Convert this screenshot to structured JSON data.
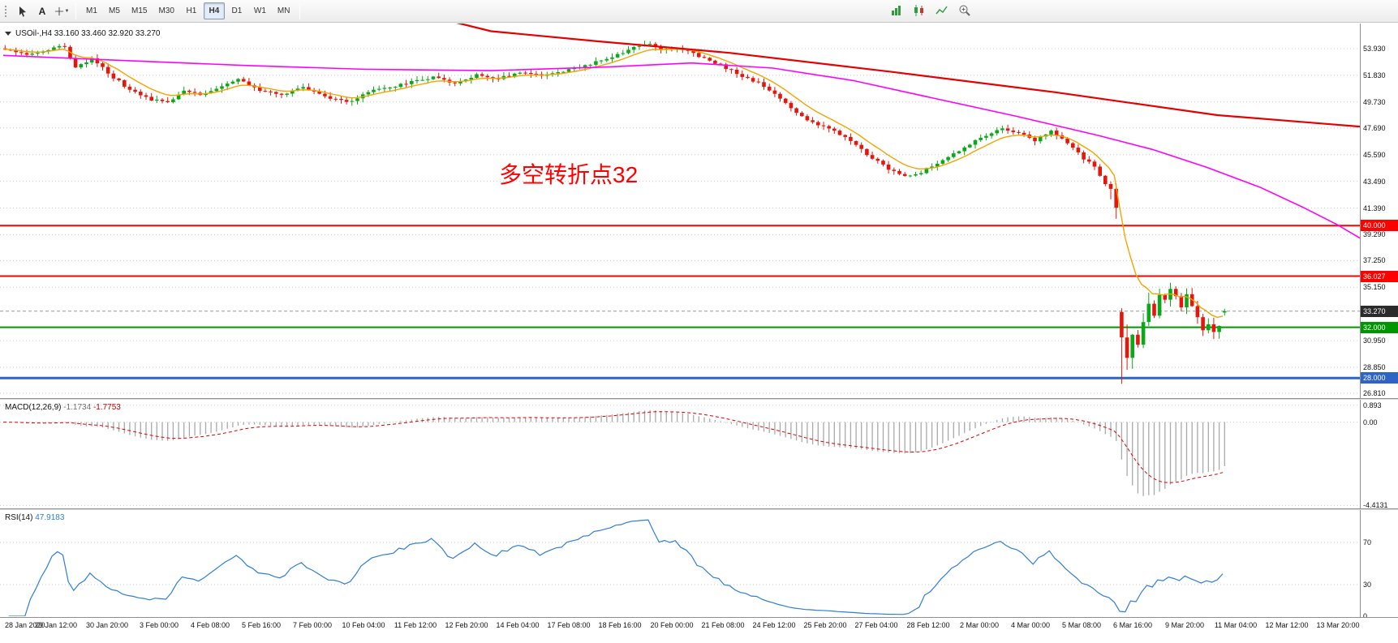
{
  "toolbar": {
    "text_tool_label": "A",
    "timeframes": [
      {
        "label": "M1",
        "active": false
      },
      {
        "label": "M5",
        "active": false
      },
      {
        "label": "M15",
        "active": false
      },
      {
        "label": "M30",
        "active": false
      },
      {
        "label": "H1",
        "active": false
      },
      {
        "label": "H4",
        "active": true
      },
      {
        "label": "D1",
        "active": false
      },
      {
        "label": "W1",
        "active": false
      },
      {
        "label": "MN",
        "active": false
      }
    ],
    "right_icons": [
      "bar-chart-icon",
      "candlestick-chart-icon",
      "line-chart-icon",
      "zoom-in-icon"
    ]
  },
  "chart": {
    "title": "USOil-,H4 33.160 33.460 32.920 33.270",
    "annotation": {
      "text": "多空转折点32",
      "color": "#ff0000"
    },
    "current_price": {
      "value": 33.27,
      "label": "33.270",
      "badge_bg": "#2b2b2b"
    },
    "hlines": [
      {
        "price": 40.0,
        "label": "40.000",
        "color": "#ff0000",
        "width": 2
      },
      {
        "price": 36.027,
        "label": "36.027",
        "color": "#ff0000",
        "width": 2
      },
      {
        "price": 32.0,
        "label": "32.000",
        "color": "#009600",
        "width": 2
      },
      {
        "price": 28.0,
        "label": "28.000",
        "color": "#2e64c8",
        "width": 3
      }
    ],
    "y_axis_labels": [
      {
        "text": "53.930",
        "value": 53.93
      },
      {
        "text": "51.830",
        "value": 51.83
      },
      {
        "text": "49.730",
        "value": 49.73
      },
      {
        "text": "47.690",
        "value": 47.69
      },
      {
        "text": "45.590",
        "value": 45.59
      },
      {
        "text": "43.490",
        "value": 43.49
      },
      {
        "text": "41.390",
        "value": 41.39
      },
      {
        "text": "39.290",
        "value": 39.29
      },
      {
        "text": "37.250",
        "value": 37.25
      },
      {
        "text": "35.150",
        "value": 35.15
      },
      {
        "text": "30.950",
        "value": 30.95
      },
      {
        "text": "28.850",
        "value": 28.85
      },
      {
        "text": "26.810",
        "value": 26.81
      }
    ]
  },
  "chart_data": {
    "type": "candlestick",
    "symbol": "USOil",
    "timeframe": "H4",
    "ohlc_current": {
      "open": 33.16,
      "high": 33.46,
      "low": 32.92,
      "close": 33.27
    },
    "bars": 226,
    "gap_open": 33.2,
    "gap_high": 33.5,
    "gap_low": 27.55,
    "up_color": "#0ca81c",
    "down_color": "#e3170c",
    "close_anchors": [
      [
        0,
        53.8
      ],
      [
        4,
        53.5
      ],
      [
        8,
        53.9
      ],
      [
        11,
        54.1
      ],
      [
        13,
        52.4
      ],
      [
        16,
        53.2
      ],
      [
        19,
        52.0
      ],
      [
        23,
        50.7
      ],
      [
        27,
        49.9
      ],
      [
        30,
        49.7
      ],
      [
        33,
        50.7
      ],
      [
        36,
        50.3
      ],
      [
        40,
        50.9
      ],
      [
        43,
        51.5
      ],
      [
        47,
        50.7
      ],
      [
        51,
        50.2
      ],
      [
        55,
        50.9
      ],
      [
        59,
        50.1
      ],
      [
        63,
        49.7
      ],
      [
        67,
        50.5
      ],
      [
        71,
        50.9
      ],
      [
        75,
        51.3
      ],
      [
        79,
        51.7
      ],
      [
        83,
        51.2
      ],
      [
        87,
        51.9
      ],
      [
        91,
        51.6
      ],
      [
        95,
        52.1
      ],
      [
        99,
        51.8
      ],
      [
        103,
        52.2
      ],
      [
        107,
        52.6
      ],
      [
        111,
        53.1
      ],
      [
        114,
        53.6
      ],
      [
        117,
        54.2
      ],
      [
        119,
        54.4
      ],
      [
        121,
        53.8
      ],
      [
        124,
        54.0
      ],
      [
        127,
        53.5
      ],
      [
        130,
        53.0
      ],
      [
        133,
        52.4
      ],
      [
        136,
        51.8
      ],
      [
        139,
        51.2
      ],
      [
        142,
        50.4
      ],
      [
        145,
        49.3
      ],
      [
        148,
        48.3
      ],
      [
        151,
        47.8
      ],
      [
        154,
        47.2
      ],
      [
        157,
        46.3
      ],
      [
        160,
        45.3
      ],
      [
        163,
        44.5
      ],
      [
        166,
        43.9
      ],
      [
        169,
        44.2
      ],
      [
        172,
        44.9
      ],
      [
        175,
        45.6
      ],
      [
        178,
        46.4
      ],
      [
        181,
        47.1
      ],
      [
        184,
        47.6
      ],
      [
        187,
        47.3
      ],
      [
        190,
        46.7
      ],
      [
        193,
        47.4
      ],
      [
        195,
        46.9
      ],
      [
        197,
        46.2
      ],
      [
        199,
        45.3
      ],
      [
        201,
        44.6
      ],
      [
        203,
        43.2
      ],
      [
        204,
        42.9
      ],
      [
        205,
        41.4
      ],
      [
        206,
        31.2
      ],
      [
        207,
        29.5
      ],
      [
        208,
        31.6
      ],
      [
        209,
        30.6
      ],
      [
        210,
        32.4
      ],
      [
        211,
        33.7
      ],
      [
        212,
        33.1
      ],
      [
        213,
        34.5
      ],
      [
        214,
        34.1
      ],
      [
        215,
        35.0
      ],
      [
        216,
        34.3
      ],
      [
        217,
        33.7
      ],
      [
        218,
        34.6
      ],
      [
        219,
        33.6
      ],
      [
        220,
        32.6
      ],
      [
        221,
        31.9
      ],
      [
        222,
        32.4
      ],
      [
        223,
        31.8
      ],
      [
        224,
        32.3
      ],
      [
        225,
        33.27
      ]
    ],
    "ma_fast_color": "#f5a300",
    "ma_mid_color": "#ff00ff",
    "ma_slow_color": "#e60000",
    "ma_mid_anchors": [
      [
        0,
        53.4
      ],
      [
        22,
        53.0
      ],
      [
        45,
        52.6
      ],
      [
        67,
        52.3
      ],
      [
        90,
        52.2
      ],
      [
        112,
        52.5
      ],
      [
        127,
        52.8
      ],
      [
        142,
        52.4
      ],
      [
        157,
        51.4
      ],
      [
        172,
        50.0
      ],
      [
        187,
        48.6
      ],
      [
        202,
        47.1
      ],
      [
        212,
        46.0
      ],
      [
        222,
        44.6
      ],
      [
        232,
        43.0
      ],
      [
        240,
        41.4
      ],
      [
        246,
        40.1
      ],
      [
        252,
        38.6
      ],
      [
        255,
        38.1
      ]
    ],
    "ma_slow_anchors": [
      [
        72,
        57.2
      ],
      [
        90,
        55.3
      ],
      [
        110,
        54.5
      ],
      [
        134,
        53.6
      ],
      [
        164,
        52.1
      ],
      [
        194,
        50.5
      ],
      [
        224,
        48.7
      ],
      [
        256,
        47.6
      ]
    ],
    "macd": {
      "name": "MACD(12,26,9)",
      "value_main": "-1.1734",
      "value_signal": "-1.7753",
      "histogram_color": "#a9a9a9",
      "signal_color": "#e00000",
      "scale": [
        {
          "text": "0.893",
          "value": 0.893
        },
        {
          "text": "0.00",
          "value": 0
        },
        {
          "text": "-4.4131",
          "value": -4.4131
        }
      ]
    },
    "rsi": {
      "name": "RSI(14)",
      "value": "47.9183",
      "line_color": "#2f7ed8",
      "levels": [
        70,
        30
      ],
      "scale": [
        {
          "text": "70",
          "value": 70
        },
        {
          "text": "30",
          "value": 30
        },
        {
          "text": "0",
          "value": 0
        }
      ]
    },
    "x_axis_labels": [
      "28 Jan 2020",
      "29 Jan 12:00",
      "30 Jan 20:00",
      "3 Feb 00:00",
      "4 Feb 08:00",
      "5 Feb 16:00",
      "7 Feb 00:00",
      "10 Feb 04:00",
      "11 Feb 12:00",
      "12 Feb 20:00",
      "14 Feb 04:00",
      "17 Feb 08:00",
      "18 Feb 16:00",
      "20 Feb 00:00",
      "21 Feb 08:00",
      "24 Feb 12:00",
      "25 Feb 20:00",
      "27 Feb 04:00",
      "28 Feb 12:00",
      "2 Mar 00:00",
      "4 Mar 00:00",
      "5 Mar 08:00",
      "6 Mar 16:00",
      "9 Mar 20:00",
      "11 Mar 04:00",
      "12 Mar 12:00",
      "13 Mar 20:00"
    ]
  }
}
